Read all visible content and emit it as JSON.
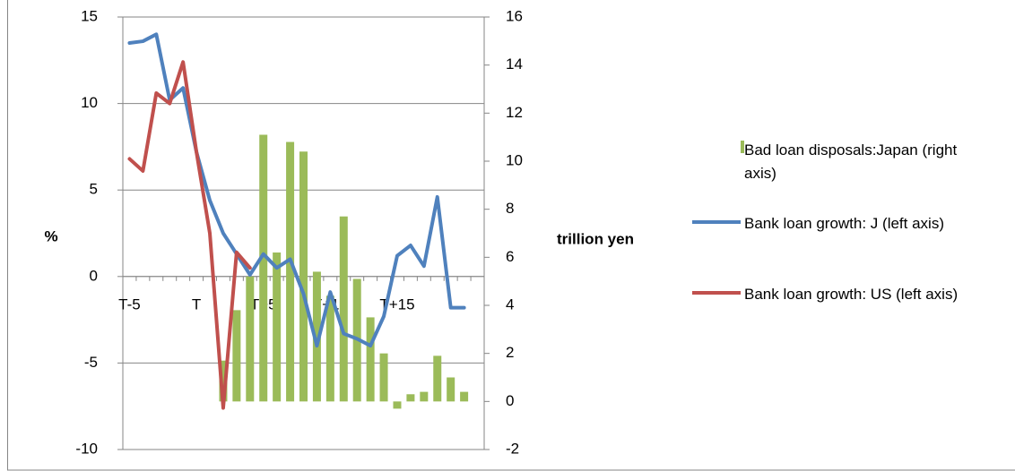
{
  "chart_data": {
    "type": "combo",
    "categories": [
      "T-5",
      null,
      null,
      null,
      null,
      "T",
      null,
      null,
      null,
      null,
      "T+5",
      null,
      null,
      null,
      null,
      "T+10",
      null,
      null,
      null,
      null,
      "T+15",
      null,
      null,
      null,
      null,
      null,
      null
    ],
    "series": [
      {
        "name": "Bad loan disposals:Japan (right axis)",
        "type": "bar",
        "axis": "y2",
        "color": "#9bbb59",
        "values": [
          null,
          null,
          null,
          null,
          null,
          null,
          null,
          1.7,
          3.8,
          5.2,
          11.1,
          6.2,
          10.8,
          10.4,
          5.4,
          4.4,
          7.7,
          5.1,
          3.5,
          2.0,
          -0.3,
          0.3,
          0.4,
          1.9,
          1.0,
          0.4,
          null
        ]
      },
      {
        "name": "Bank loan growth: J (left axis)",
        "type": "line",
        "axis": "y",
        "color": "#4f81bd",
        "values": [
          13.5,
          13.6,
          14.0,
          10.2,
          10.9,
          7.2,
          4.4,
          2.5,
          1.3,
          0.1,
          1.3,
          0.5,
          1.0,
          -1.0,
          -4.0,
          -0.9,
          -3.3,
          -3.6,
          -4.0,
          -2.3,
          1.2,
          1.8,
          0.6,
          4.6,
          -1.8,
          -1.8,
          null
        ]
      },
      {
        "name": "Bank loan growth: US (left axis)",
        "type": "line",
        "axis": "y",
        "color": "#c0504d",
        "values": [
          6.8,
          6.1,
          10.6,
          10.0,
          12.4,
          7.2,
          2.5,
          -7.6,
          1.4,
          0.5,
          null,
          null,
          null,
          null,
          null,
          null,
          null,
          null,
          null,
          null,
          null,
          null,
          null,
          null,
          null,
          null,
          null
        ]
      }
    ],
    "y_label": "%",
    "y2_label": "trillion yen",
    "ylim": [
      -10,
      15
    ],
    "yticks": [
      -10,
      -5,
      0,
      5,
      10,
      15
    ],
    "y2lim": [
      -2,
      16
    ],
    "y2ticks": [
      -2,
      0,
      2,
      4,
      6,
      8,
      10,
      12,
      14,
      16
    ],
    "grid": true,
    "legend": "right"
  }
}
